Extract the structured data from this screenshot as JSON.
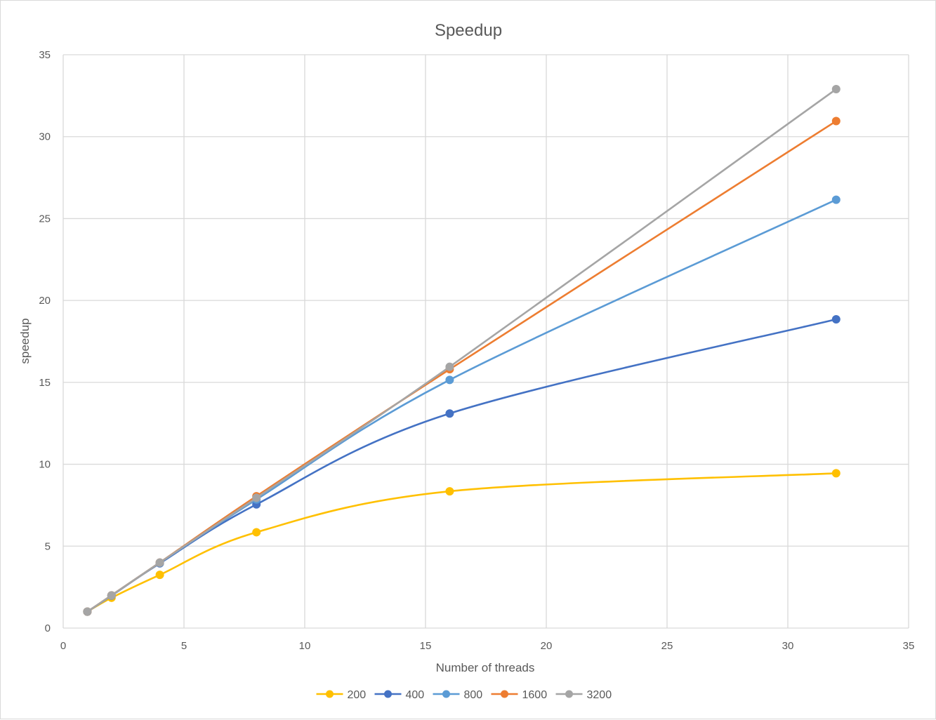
{
  "chart_data": {
    "type": "line",
    "title": "Speedup",
    "xlabel": "Number of threads",
    "ylabel": "speedup",
    "xlim": [
      0,
      35
    ],
    "ylim": [
      0,
      35
    ],
    "xticks": [
      0,
      5,
      10,
      15,
      20,
      25,
      30,
      35
    ],
    "yticks": [
      0,
      5,
      10,
      15,
      20,
      25,
      30,
      35
    ],
    "grid": true,
    "smooth": true,
    "legend_position": "bottom",
    "x": [
      1,
      2,
      4,
      8,
      16,
      32
    ],
    "series": [
      {
        "name": "200",
        "color": "#FFC000",
        "values": [
          1.0,
          1.85,
          3.25,
          5.85,
          8.35,
          9.45
        ]
      },
      {
        "name": "400",
        "color": "#4472C4",
        "values": [
          1.0,
          1.98,
          3.95,
          7.55,
          13.1,
          18.85
        ]
      },
      {
        "name": "800",
        "color": "#5B9BD5",
        "values": [
          1.0,
          1.98,
          3.98,
          7.85,
          15.15,
          26.15
        ]
      },
      {
        "name": "1600",
        "color": "#ED7D31",
        "values": [
          1.0,
          2.0,
          4.0,
          8.05,
          15.8,
          30.95
        ]
      },
      {
        "name": "3200",
        "color": "#A5A5A5",
        "values": [
          1.0,
          2.0,
          4.0,
          7.95,
          15.95,
          32.9
        ]
      }
    ]
  }
}
